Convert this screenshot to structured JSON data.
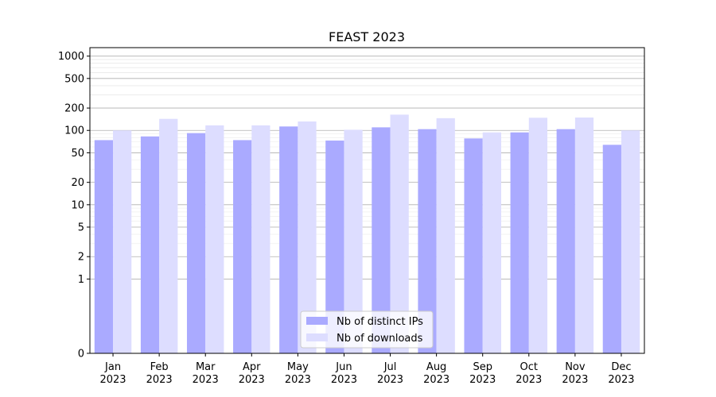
{
  "chart_data": {
    "type": "bar",
    "title": "FEAST 2023",
    "xlabel": "",
    "ylabel": "",
    "yscale": "symlog",
    "ylim": [
      0,
      1300
    ],
    "yticks": [
      0,
      1,
      2,
      5,
      10,
      20,
      50,
      100,
      200,
      500,
      1000
    ],
    "ytick_labels": [
      "0",
      "1",
      "2",
      "5",
      "10",
      "20",
      "50",
      "100",
      "200",
      "500",
      "1000"
    ],
    "categories": [
      "Jan\n2023",
      "Feb\n2023",
      "Mar\n2023",
      "Apr\n2023",
      "May\n2023",
      "Jun\n2023",
      "Jul\n2023",
      "Aug\n2023",
      "Sep\n2023",
      "Oct\n2023",
      "Nov\n2023",
      "Dec\n2023"
    ],
    "series": [
      {
        "name": "Nb of distinct IPs",
        "color": "#aaaaff",
        "values": [
          74,
          83,
          92,
          74,
          113,
          73,
          110,
          104,
          78,
          94,
          104,
          64
        ]
      },
      {
        "name": "Nb of downloads",
        "color": "#ddddff",
        "values": [
          100,
          143,
          117,
          117,
          132,
          102,
          163,
          146,
          94,
          148,
          149,
          100
        ]
      }
    ],
    "legend_position": "bottom-center",
    "grid": true
  }
}
